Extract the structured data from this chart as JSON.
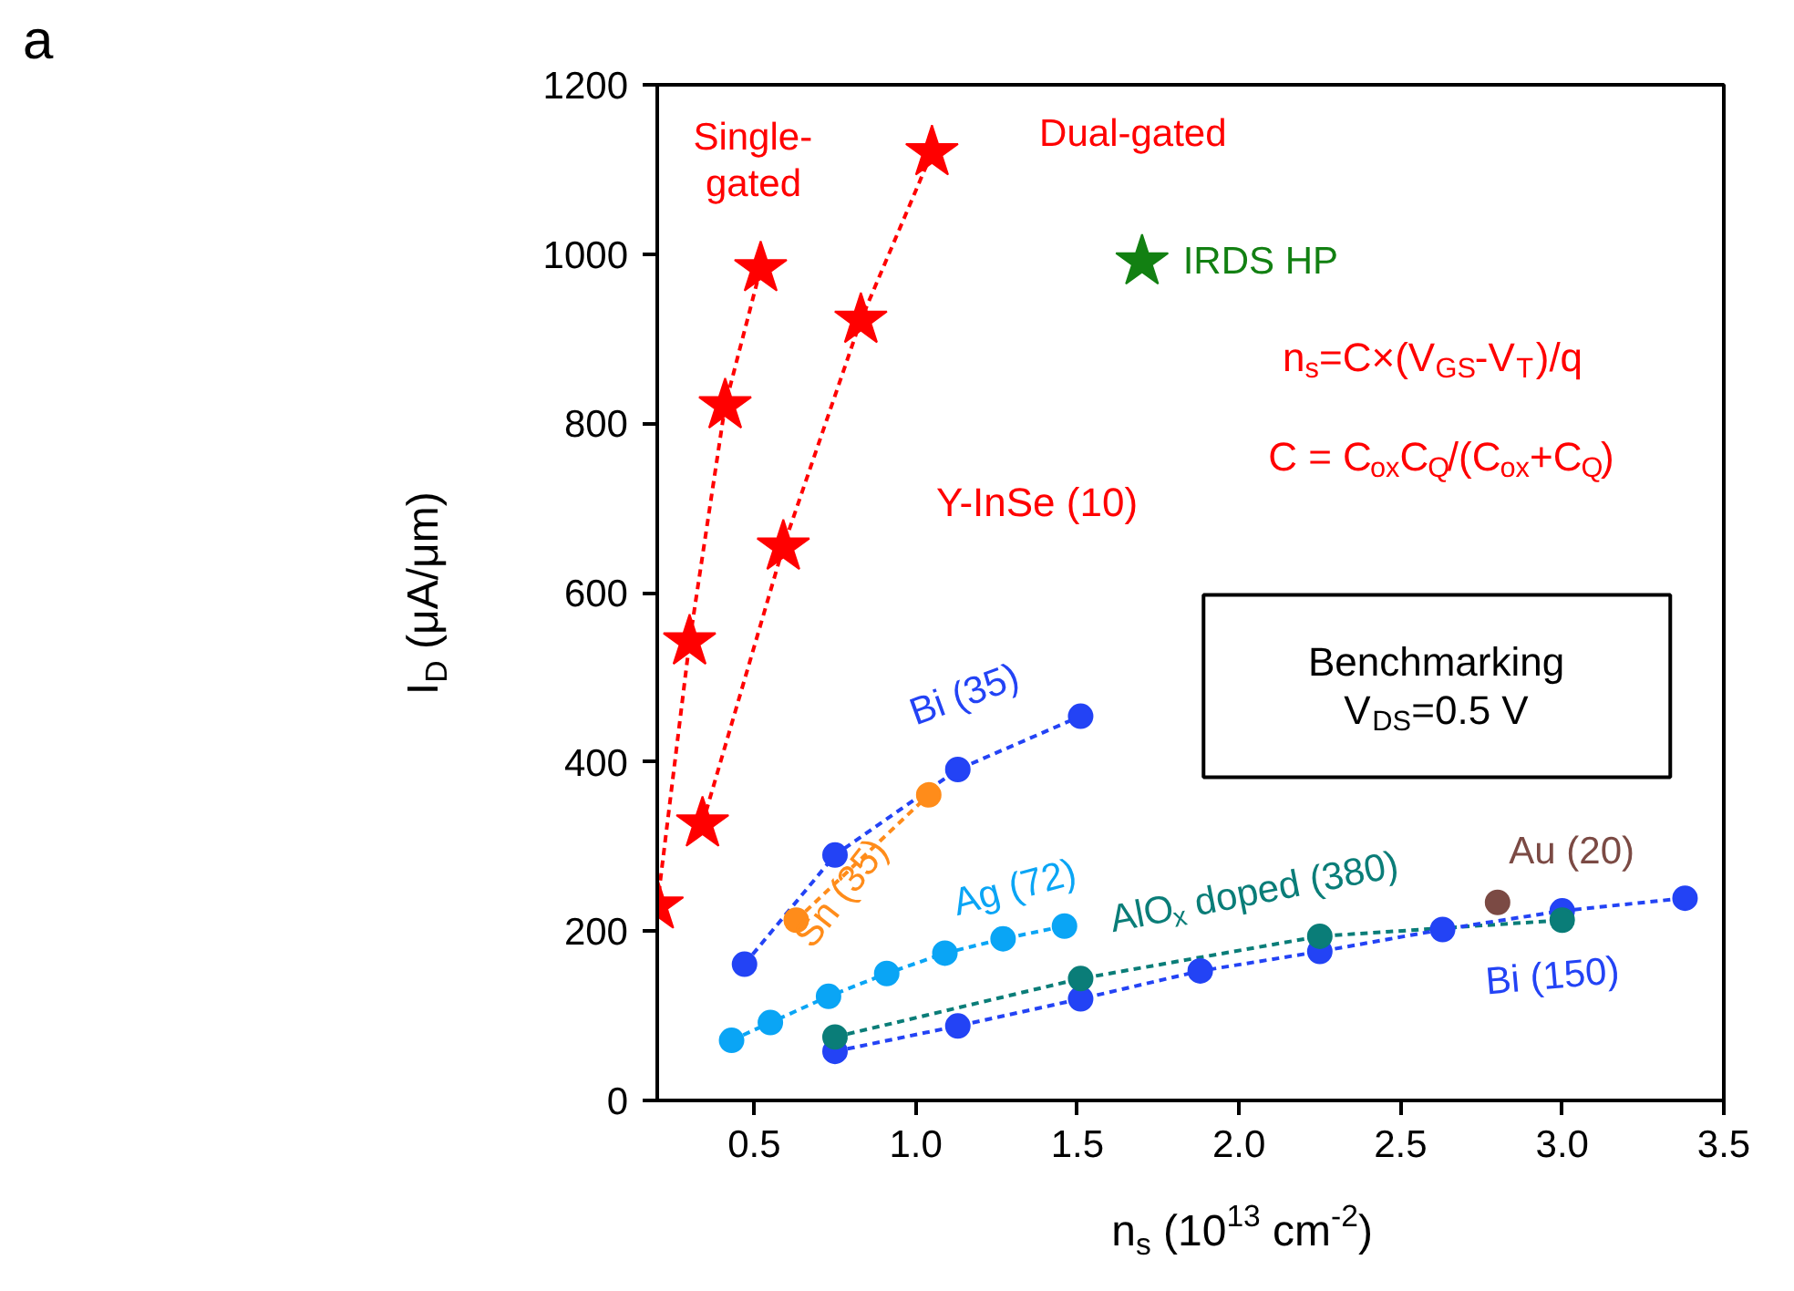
{
  "chart_data": {
    "type": "line",
    "xlabel": "n$_{s}$ (10$^{13}$ cm$^{-2}$)",
    "ylabel": "I$_{D}$ (μA/μm)",
    "xlim": [
      0.2,
      3.5
    ],
    "ylim": [
      0,
      1200
    ],
    "xticks": [
      {
        "value": 0.5,
        "label": "0.5"
      },
      {
        "value": 1,
        "label": "1.0"
      },
      {
        "value": 1.5,
        "label": "1.5"
      },
      {
        "value": 2,
        "label": "2.0"
      },
      {
        "value": 2.5,
        "label": "2.5"
      },
      {
        "value": 3,
        "label": "3.0"
      },
      {
        "value": 3.5,
        "label": "3.5"
      }
    ],
    "yticks": [
      0,
      200,
      400,
      600,
      800,
      1000,
      1200
    ],
    "marker": "circle",
    "line_style": "dashed",
    "series": [
      {
        "name": "Single-\ngated",
        "color": "#ff0000",
        "marker": "star",
        "x": [
          0.2,
          0.3,
          0.41,
          0.52
        ],
        "values": [
          230,
          542,
          821,
          983
        ]
      },
      {
        "name": "Dual-gated",
        "color": "#ff0000",
        "marker": "star",
        "x": [
          0.34,
          0.59,
          0.83,
          1.05
        ],
        "values": [
          327,
          654,
          922,
          1120
        ]
      },
      {
        "name": "IRDS HP",
        "type": "scatter",
        "color": "#128012",
        "marker": "star",
        "x": [
          1.7
        ],
        "values": [
          991
        ]
      },
      {
        "name": "Bi (35)",
        "color": "#2343f5",
        "x": [
          0.47,
          0.75,
          1.13,
          1.51
        ],
        "values": [
          161,
          290,
          391,
          454
        ]
      },
      {
        "name": "Sn (35)",
        "color": "#ff8c1a",
        "x": [
          0.63,
          1.04
        ],
        "values": [
          213,
          361
        ]
      },
      {
        "name": "Ag (72)",
        "color": "#0aa5f5",
        "x": [
          0.43,
          0.55,
          0.73,
          0.91,
          1.09,
          1.27,
          1.46
        ],
        "values": [
          71,
          92,
          123,
          150,
          174,
          191,
          206
        ]
      },
      {
        "name": "AlO$_{x}$ doped (380)",
        "color": "#0a7d78",
        "x": [
          0.75,
          1.51,
          2.25,
          3.0
        ],
        "values": [
          75,
          144,
          194,
          213
        ]
      },
      {
        "name": "Bi (150)",
        "color": "#2343f5",
        "x": [
          0.75,
          1.13,
          1.51,
          1.88,
          2.25,
          2.63,
          3.0,
          3.38
        ],
        "values": [
          58,
          88,
          120,
          153,
          176,
          202,
          224,
          239
        ]
      },
      {
        "name": "Au (20)",
        "type": "scatter",
        "color": "#7b4a44",
        "x": [
          2.8
        ],
        "values": [
          234
        ]
      }
    ],
    "annotations": [
      "a",
      "n$_{s}$=C×(V$_{GS}$-V$_{T}$)/q",
      "C = C$_{ox}$C$_{Q}$/(C$_{ox}$+C$_{Q}$)",
      "Y-InSe (10)",
      "Benchmarking\nV$_{DS}$=0.5 V"
    ]
  }
}
